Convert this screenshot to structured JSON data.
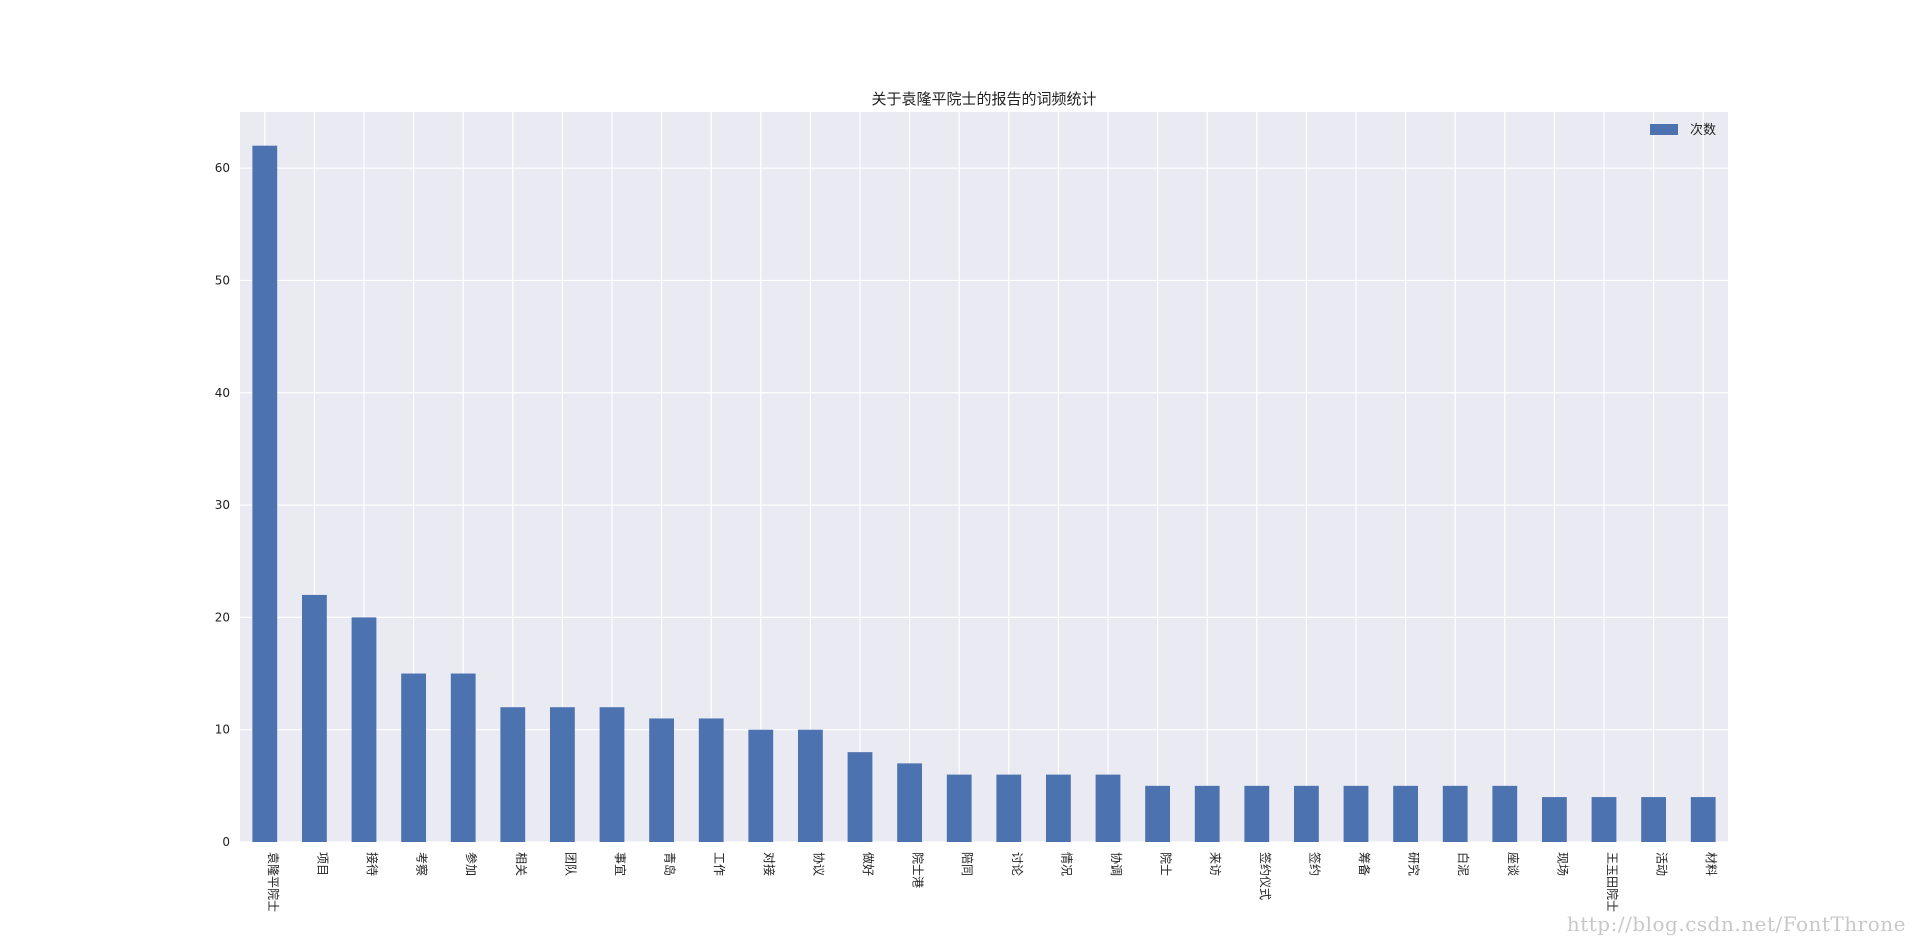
{
  "chart_data": {
    "type": "bar",
    "title": "关于袁隆平院士的报告的词频统计",
    "xlabel": "",
    "ylabel": "",
    "categories": [
      "袁隆平院士",
      "项目",
      "接待",
      "考察",
      "参加",
      "相关",
      "团队",
      "事宜",
      "青岛",
      "工作",
      "对接",
      "协议",
      "做好",
      "院士港",
      "陪同",
      "讨论",
      "情况",
      "协调",
      "院士",
      "来访",
      "签约仪式",
      "签约",
      "筹备",
      "研究",
      "白泥",
      "座谈",
      "现场",
      "王玉田院士",
      "活动",
      "材料"
    ],
    "series": [
      {
        "name": "次数",
        "values": [
          62,
          22,
          20,
          15,
          15,
          12,
          12,
          12,
          11,
          11,
          10,
          10,
          8,
          7,
          6,
          6,
          6,
          6,
          5,
          5,
          5,
          5,
          5,
          5,
          5,
          5,
          4,
          4,
          4,
          4
        ]
      }
    ],
    "ylim": [
      0,
      65
    ],
    "yticks": [
      0,
      10,
      20,
      30,
      40,
      50,
      60
    ],
    "grid": true,
    "legend_position": "top-right",
    "bar_color": "#4c72b0",
    "plot_background": "#eaeaf2",
    "grid_color": "#ffffff"
  },
  "watermark": "http://blog.csdn.net/FontThrone"
}
